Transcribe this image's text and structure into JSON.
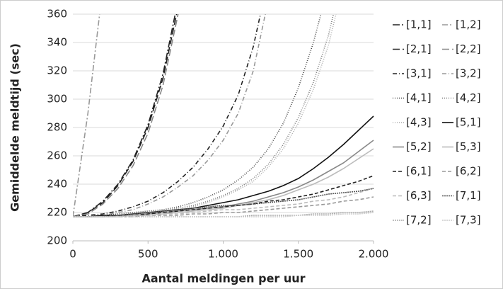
{
  "chart_data": {
    "type": "line",
    "y_label": "Gemiddelde meldtijd (sec)",
    "x_label": "Aantal meldingen per uur",
    "x": [
      0,
      100,
      200,
      300,
      400,
      500,
      600,
      700,
      800,
      900,
      1000,
      1100,
      1200,
      1300,
      1400,
      1500,
      1600,
      1700,
      1800,
      1900,
      2000
    ],
    "xlim": [
      0,
      2000
    ],
    "xticks": [
      0,
      500,
      {
        "value": 1000,
        "label": "1.000"
      },
      {
        "value": 1500,
        "label": "1.500"
      },
      {
        "value": 2000,
        "label": "2.000"
      }
    ],
    "ylim": [
      200,
      360
    ],
    "yticks": [
      200,
      220,
      240,
      260,
      280,
      300,
      320,
      340,
      360
    ],
    "grid": true,
    "legend": "right",
    "series": [
      {
        "name": "[1,1]",
        "color": "#222222",
        "dash": "10,3,2,3",
        "values": [
          217,
          220,
          228,
          240,
          257,
          282,
          318,
          370,
          null,
          null,
          null,
          null,
          null,
          null,
          null,
          null,
          null,
          null,
          null,
          null,
          null
        ]
      },
      {
        "name": "[1,2]",
        "color": "#999999",
        "dash": "8,3,2,3",
        "values": [
          217,
          290,
          380,
          null,
          null,
          null,
          null,
          null,
          null,
          null,
          null,
          null,
          null,
          null,
          null,
          null,
          null,
          null,
          null,
          null,
          null
        ]
      },
      {
        "name": "[2,1]",
        "color": "#222222",
        "dash": "10,4",
        "values": [
          217,
          220,
          227,
          239,
          256,
          280,
          315,
          365,
          null,
          null,
          null,
          null,
          null,
          null,
          null,
          null,
          null,
          null,
          null,
          null,
          null
        ]
      },
      {
        "name": "[2,2]",
        "color": "#888888",
        "dash": "10,4",
        "values": [
          217,
          219,
          226,
          237,
          253,
          276,
          310,
          360,
          null,
          null,
          null,
          null,
          null,
          null,
          null,
          null,
          null,
          null,
          null,
          null,
          null
        ]
      },
      {
        "name": "[3,1]",
        "color": "#222222",
        "dash": "6,3,1,3",
        "values": [
          217,
          218,
          219,
          221,
          224,
          228,
          234,
          242,
          252,
          265,
          281,
          303,
          337,
          385,
          null,
          null,
          null,
          null,
          null,
          null,
          null
        ]
      },
      {
        "name": "[3,2]",
        "color": "#999999",
        "dash": "6,3,1,3",
        "values": [
          217,
          217,
          218,
          220,
          222,
          226,
          231,
          238,
          246,
          257,
          271,
          290,
          320,
          370,
          null,
          null,
          null,
          null,
          null,
          null,
          null
        ]
      },
      {
        "name": "[4,1]",
        "color": "#444444",
        "dash": "1,2",
        "values": [
          217,
          217,
          218,
          219,
          220,
          221,
          222,
          224,
          227,
          231,
          236,
          243,
          252,
          265,
          283,
          308,
          340,
          380,
          null,
          null,
          null
        ]
      },
      {
        "name": "[4,2]",
        "color": "#777777",
        "dash": "1,2",
        "values": [
          217,
          217,
          217,
          218,
          219,
          220,
          221,
          223,
          225,
          228,
          232,
          237,
          244,
          254,
          268,
          287,
          312,
          345,
          390,
          null,
          null
        ]
      },
      {
        "name": "[4,3]",
        "color": "#aaaaaa",
        "dash": "1,2",
        "values": [
          217,
          217,
          217,
          218,
          219,
          220,
          221,
          222,
          224,
          227,
          231,
          236,
          242,
          252,
          265,
          283,
          307,
          338,
          382,
          null,
          null
        ]
      },
      {
        "name": "[5,1]",
        "color": "#111111",
        "dash": "",
        "values": [
          217,
          217,
          218,
          218,
          219,
          220,
          221,
          222,
          223,
          225,
          227,
          229,
          232,
          235,
          239,
          244,
          251,
          259,
          268,
          278,
          288
        ]
      },
      {
        "name": "[5,2]",
        "color": "#888888",
        "dash": "",
        "values": [
          217,
          217,
          217,
          218,
          218,
          219,
          220,
          221,
          222,
          223,
          224,
          226,
          228,
          231,
          234,
          238,
          243,
          249,
          255,
          263,
          271
        ]
      },
      {
        "name": "[5,3]",
        "color": "#bbbbbb",
        "dash": "",
        "values": [
          217,
          217,
          217,
          217,
          218,
          218,
          219,
          220,
          221,
          222,
          223,
          225,
          227,
          229,
          232,
          236,
          240,
          245,
          251,
          258,
          265
        ]
      },
      {
        "name": "[6,1]",
        "color": "#222222",
        "dash": "5,3",
        "values": [
          217,
          217,
          217,
          218,
          218,
          219,
          220,
          221,
          222,
          223,
          224,
          225,
          226,
          228,
          229,
          231,
          233,
          236,
          239,
          242,
          246
        ]
      },
      {
        "name": "[6,2]",
        "color": "#999999",
        "dash": "5,3",
        "values": [
          217,
          217,
          217,
          217,
          217,
          218,
          218,
          218,
          219,
          219,
          220,
          220,
          221,
          222,
          223,
          224,
          225,
          226,
          228,
          229,
          231
        ]
      },
      {
        "name": "[6,3]",
        "color": "#bbbbbb",
        "dash": "5,3",
        "values": [
          217,
          217,
          217,
          217,
          218,
          218,
          219,
          219,
          220,
          221,
          222,
          222,
          223,
          224,
          225,
          226,
          228,
          229,
          231,
          234,
          237
        ]
      },
      {
        "name": "[7,1]",
        "color": "#555555",
        "dash": "2,1",
        "values": [
          217,
          217,
          217,
          218,
          219,
          220,
          221,
          222,
          223,
          224,
          225,
          225,
          226,
          227,
          228,
          229,
          231,
          233,
          234,
          235,
          237
        ]
      },
      {
        "name": "[7,2]",
        "color": "#aaaaaa",
        "dash": "2,1",
        "values": [
          217,
          217,
          217,
          217,
          217,
          217,
          217,
          217,
          217,
          217,
          217,
          217,
          218,
          218,
          218,
          218,
          219,
          219,
          220,
          220,
          221
        ]
      },
      {
        "name": "[7,3]",
        "color": "#cccccc",
        "dash": "2,1",
        "values": [
          217,
          217,
          217,
          217,
          217,
          217,
          217,
          217,
          217,
          217,
          217,
          217,
          217,
          217,
          217,
          218,
          218,
          218,
          219,
          219,
          220
        ]
      }
    ]
  }
}
